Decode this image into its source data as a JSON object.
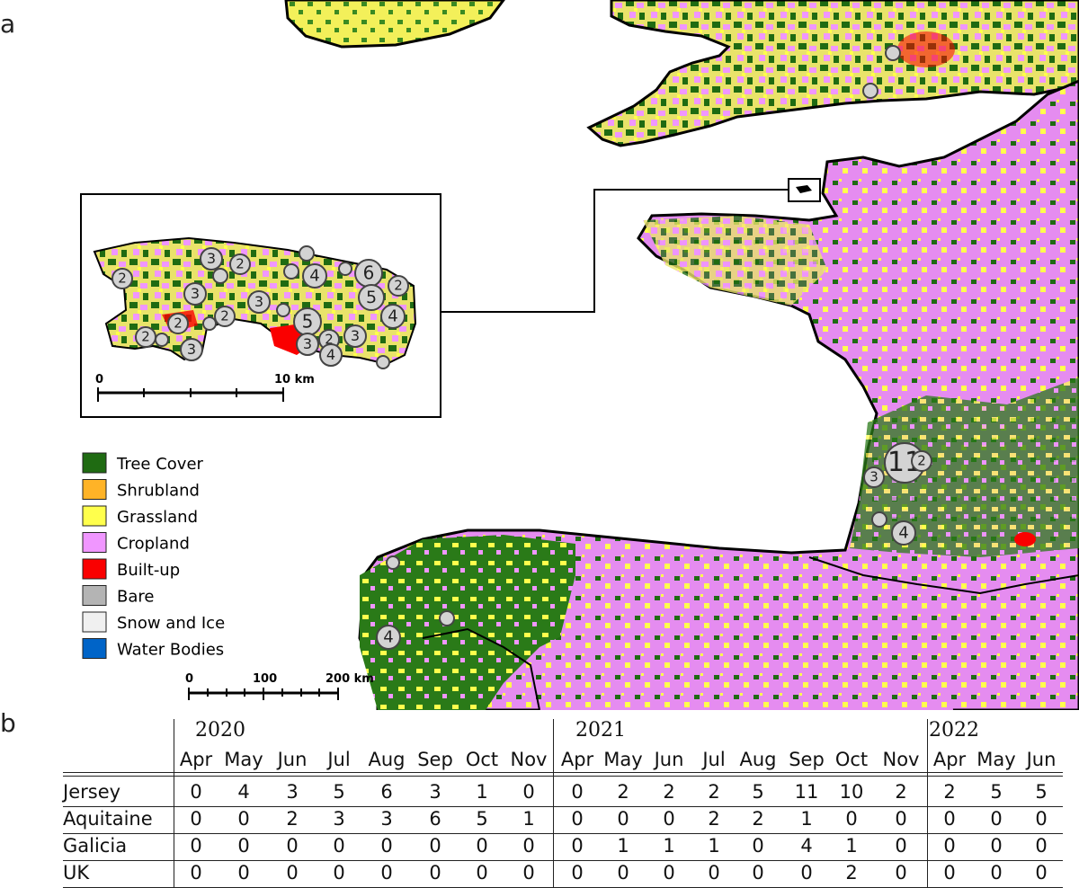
{
  "panel_labels": {
    "a": "a",
    "b": "b"
  },
  "legend": [
    {
      "label": "Tree Cover",
      "color": "#1f6b12"
    },
    {
      "label": "Shrubland",
      "color": "#ffb327"
    },
    {
      "label": "Grassland",
      "color": "#ffff4c"
    },
    {
      "label": "Cropland",
      "color": "#f096ff"
    },
    {
      "label": "Built-up",
      "color": "#fa0000"
    },
    {
      "label": "Bare",
      "color": "#b4b4b4"
    },
    {
      "label": "Snow and Ice",
      "color": "#f0f0f0"
    },
    {
      "label": "Water Bodies",
      "color": "#0064c8"
    }
  ],
  "inset_scale": {
    "start": "0",
    "end": "10 km"
  },
  "main_scale": {
    "start": "0",
    "mid": "100",
    "end": "200 km"
  },
  "inset_markers": [
    "2",
    "3",
    "2",
    "3",
    "3",
    "4",
    "6",
    "2",
    "5",
    "2",
    "2",
    "5",
    "4",
    "2",
    "3",
    "2",
    "3",
    "4",
    "3"
  ],
  "main_markers": [
    "11",
    "2",
    "3",
    "4",
    "4"
  ],
  "table": {
    "years": [
      "2020",
      "2021",
      "2022"
    ],
    "months": [
      "Apr",
      "May",
      "Jun",
      "Jul",
      "Aug",
      "Sep",
      "Oct",
      "Nov",
      "Apr",
      "May",
      "Jun",
      "Jul",
      "Aug",
      "Sep",
      "Oct",
      "Nov",
      "Apr",
      "May",
      "Jun"
    ],
    "rows": [
      {
        "region": "Jersey",
        "values": [
          "0",
          "4",
          "3",
          "5",
          "6",
          "3",
          "1",
          "0",
          "0",
          "2",
          "2",
          "2",
          "5",
          "11",
          "10",
          "2",
          "2",
          "5",
          "5"
        ]
      },
      {
        "region": "Aquitaine",
        "values": [
          "0",
          "0",
          "2",
          "3",
          "3",
          "6",
          "5",
          "1",
          "0",
          "0",
          "0",
          "2",
          "2",
          "1",
          "0",
          "0",
          "0",
          "0",
          "0"
        ]
      },
      {
        "region": "Galicia",
        "values": [
          "0",
          "0",
          "0",
          "0",
          "0",
          "0",
          "0",
          "0",
          "0",
          "1",
          "1",
          "1",
          "0",
          "4",
          "1",
          "0",
          "0",
          "0",
          "0"
        ]
      },
      {
        "region": "UK",
        "values": [
          "0",
          "0",
          "0",
          "0",
          "0",
          "0",
          "0",
          "0",
          "0",
          "0",
          "0",
          "0",
          "0",
          "0",
          "2",
          "0",
          "0",
          "0",
          "0"
        ]
      }
    ]
  }
}
